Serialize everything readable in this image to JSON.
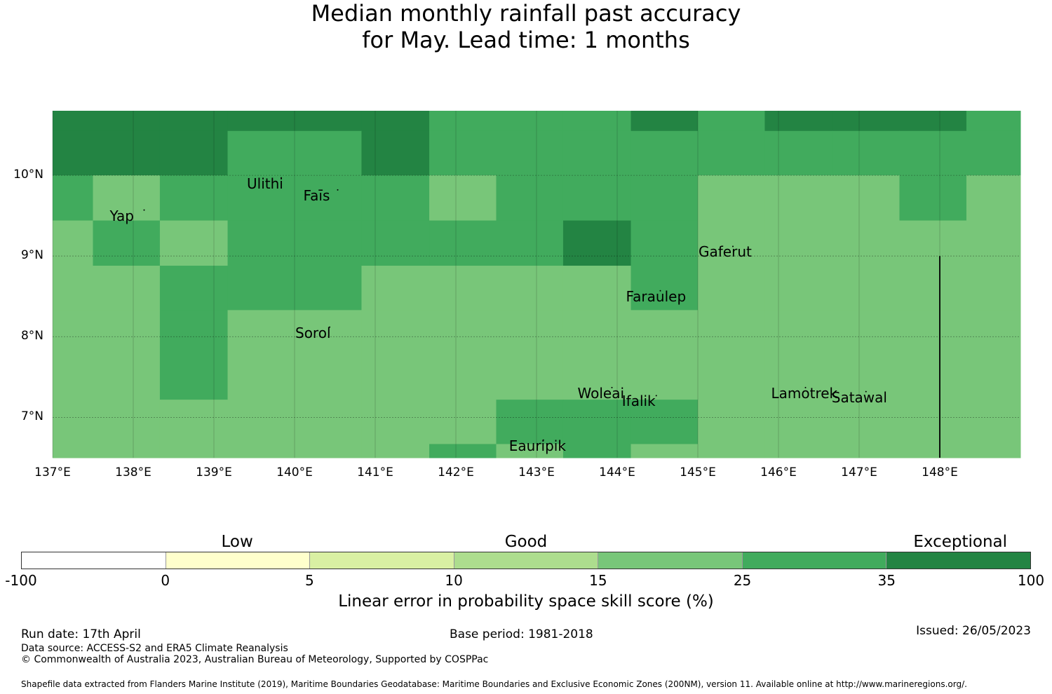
{
  "title": {
    "line1": "Median monthly rainfall past accuracy",
    "line2": "for May. Lead time: 1 months"
  },
  "map": {
    "lat_ticks": [
      "10°N",
      "9°N",
      "8°N",
      "7°N"
    ],
    "lon_ticks": [
      "137°E",
      "138°E",
      "139°E",
      "140°E",
      "141°E",
      "142°E",
      "143°E",
      "144°E",
      "145°E",
      "146°E",
      "147°E",
      "148°E"
    ],
    "lat_range": [
      6.5,
      10.8
    ],
    "lon_range": [
      137.0,
      149.0
    ],
    "places": [
      {
        "name": "Ulithi",
        "lon": 139.8,
        "lat": 9.9
      },
      {
        "name": "Yap",
        "lon": 138.1,
        "lat": 9.5
      },
      {
        "name": "Faīs",
        "lon": 140.5,
        "lat": 9.75
      },
      {
        "name": "Gaferut",
        "lon": 145.4,
        "lat": 9.05
      },
      {
        "name": "Faraulep",
        "lon": 144.5,
        "lat": 8.5
      },
      {
        "name": "Sorol",
        "lon": 140.4,
        "lat": 8.05
      },
      {
        "name": "Woleai",
        "lon": 143.9,
        "lat": 7.3
      },
      {
        "name": "Ifalik",
        "lon": 144.45,
        "lat": 7.2
      },
      {
        "name": "Lamotrek",
        "lon": 146.3,
        "lat": 7.3
      },
      {
        "name": "Satawal",
        "lon": 147.05,
        "lat": 7.25
      },
      {
        "name": "Eauripik",
        "lon": 143.05,
        "lat": 6.65
      }
    ],
    "cell_lon_edges": [
      137.0,
      137.5,
      138.33,
      139.17,
      140.0,
      140.83,
      141.67,
      142.5,
      143.33,
      144.17,
      145.0,
      145.83,
      146.67,
      147.5,
      148.33,
      149.0
    ],
    "cell_lat_edges": [
      10.8,
      10.55,
      10.0,
      9.44,
      8.88,
      8.33,
      7.22,
      6.67,
      6.5
    ],
    "cell_levels": [
      [
        6,
        6,
        6,
        6,
        6,
        6,
        5,
        5,
        5,
        6,
        5,
        6,
        6,
        6,
        5
      ],
      [
        6,
        6,
        6,
        5,
        5,
        6,
        5,
        5,
        5,
        5,
        5,
        5,
        5,
        5,
        5
      ],
      [
        5,
        4,
        5,
        5,
        5,
        5,
        4,
        5,
        5,
        5,
        4,
        4,
        4,
        5,
        4
      ],
      [
        4,
        5,
        4,
        5,
        5,
        5,
        5,
        5,
        6,
        5,
        4,
        4,
        4,
        4,
        4
      ],
      [
        4,
        4,
        5,
        5,
        5,
        4,
        4,
        4,
        4,
        5,
        4,
        4,
        4,
        4,
        4
      ],
      [
        4,
        4,
        5,
        4,
        4,
        4,
        4,
        4,
        4,
        4,
        4,
        4,
        4,
        4,
        4
      ],
      [
        4,
        4,
        4,
        4,
        4,
        4,
        4,
        5,
        5,
        5,
        4,
        4,
        4,
        4,
        4
      ],
      [
        4,
        4,
        4,
        4,
        4,
        4,
        5,
        4,
        5,
        4,
        4,
        4,
        4,
        4,
        4
      ]
    ],
    "vertical_line_lon": 148.0,
    "vertical_line_lat": [
      6.5,
      9.0
    ]
  },
  "colorbar": {
    "categories": [
      {
        "label": "Low",
        "at": 0.214
      },
      {
        "label": "Good",
        "at": 0.5
      },
      {
        "label": "Exceptional",
        "at": 0.93
      }
    ],
    "colors": [
      "#ffffff",
      "#ffffcc",
      "#d9f0a3",
      "#addd8e",
      "#78c679",
      "#41ab5d",
      "#238443"
    ],
    "ticks": [
      "-100",
      "0",
      "5",
      "10",
      "15",
      "25",
      "35",
      "100"
    ],
    "axis_label": "Linear error in probability space skill score (%)"
  },
  "footer": {
    "run_date": "Run date: 17th April",
    "base_period": "Base period: 1981-2018",
    "issued": "Issued: 26/05/2023",
    "data_source": "Data source: ACCESS-S2 and ERA5 Climate Reanalysis",
    "copyright": "© Commonwealth of Australia 2023, Australian Bureau of Meteorology, Supported by COSPPac",
    "shapefile": "Shapefile data extracted from Flanders Marine Institute (2019), Maritime Boundaries Geodatabase: Maritime Boundaries and Exclusive Economic Zones (200NM), version 11. Available online at http://www.marineregions.org/."
  }
}
